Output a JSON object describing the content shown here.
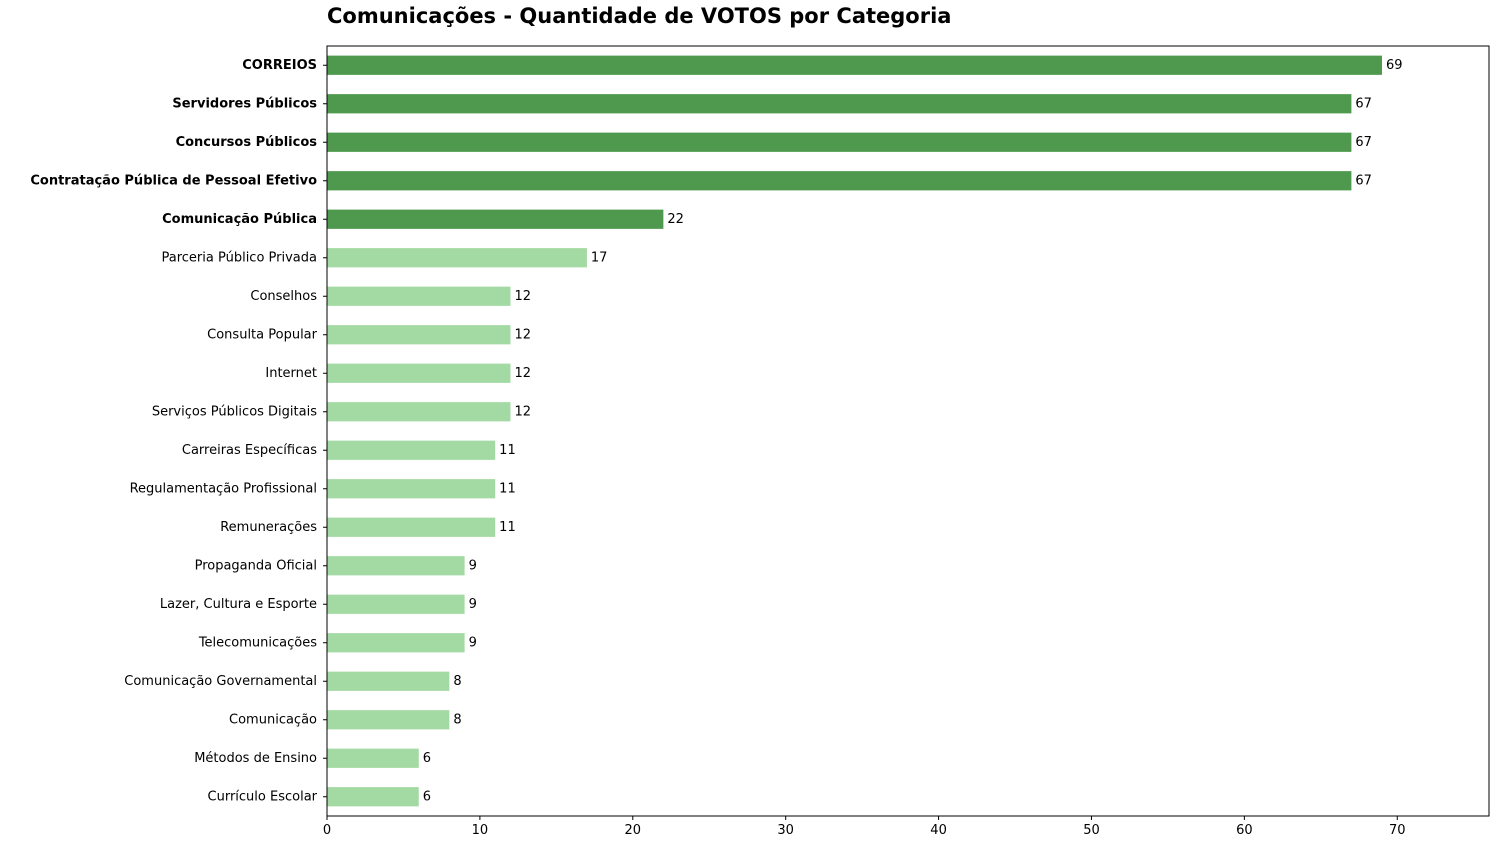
{
  "chart_data": {
    "type": "bar",
    "orientation": "horizontal",
    "title": "Comunicações - Quantidade de VOTOS por Categoria",
    "xlabel": "",
    "ylabel": "",
    "xlim": [
      0,
      76
    ],
    "xticks": [
      0,
      10,
      20,
      30,
      40,
      50,
      60,
      70
    ],
    "grid": false,
    "categories": [
      "CORREIOS",
      "Servidores Públicos",
      "Concursos Públicos",
      "Contratação Pública de Pessoal Efetivo",
      "Comunicação Pública",
      "Parceria Público Privada",
      "Conselhos",
      "Consulta Popular",
      "Internet",
      "Serviços Públicos Digitais",
      "Carreiras Específicas",
      "Regulamentação Profissional",
      "Remunerações",
      "Propaganda Oficial",
      "Lazer, Cultura e Esporte",
      "Telecomunicações",
      "Comunicação Governamental",
      "Comunicação",
      "Métodos de Ensino",
      "Currículo Escolar"
    ],
    "values": [
      69,
      67,
      67,
      67,
      22,
      17,
      12,
      12,
      12,
      12,
      11,
      11,
      11,
      9,
      9,
      9,
      8,
      8,
      6,
      6
    ],
    "highlighted_top_n": 5,
    "colors": {
      "highlight": "#4f994f",
      "normal": "#a3d9a3"
    }
  }
}
